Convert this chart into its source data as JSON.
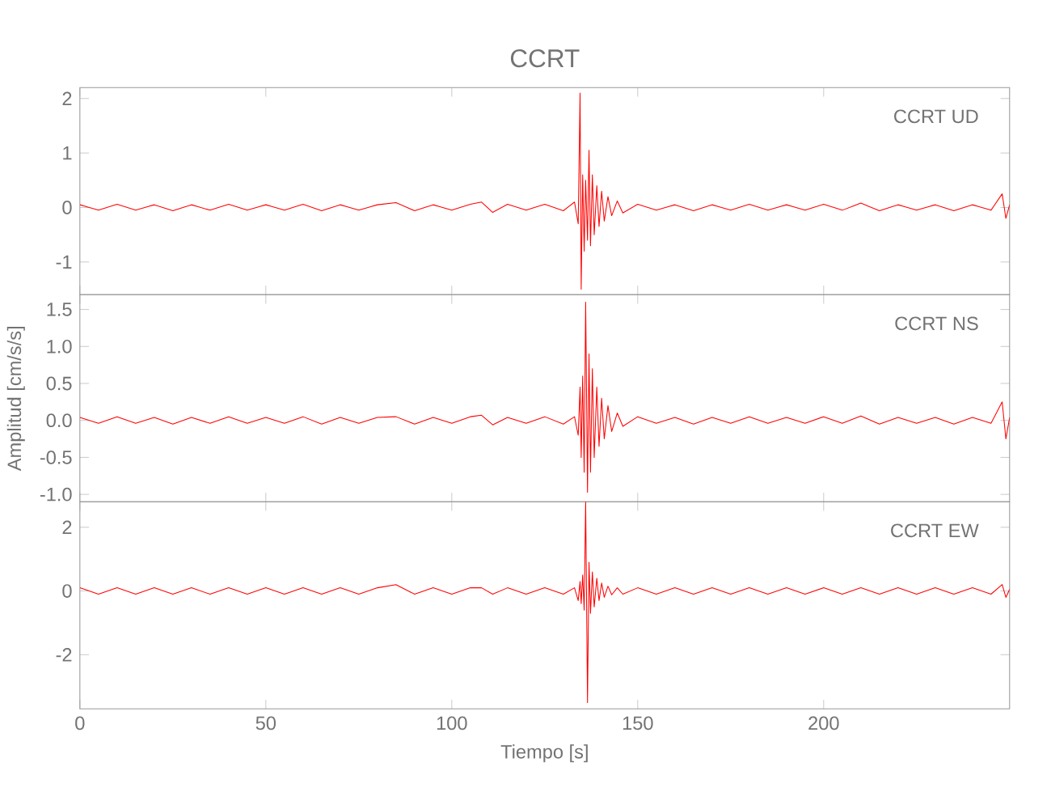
{
  "chart_data": [
    {
      "type": "line",
      "title": "CCRT",
      "annotations": [
        "CCRT   UD"
      ],
      "xlim": [
        0,
        250
      ],
      "xticks": [
        0,
        50,
        100,
        150,
        200
      ],
      "ylim": [
        -1.6,
        2.2
      ],
      "yticks": [
        -1,
        0,
        1,
        2
      ],
      "tick_labels": "y",
      "x": [
        0,
        5,
        10,
        15,
        20,
        25,
        30,
        35,
        40,
        45,
        50,
        55,
        60,
        65,
        70,
        75,
        80,
        85,
        90,
        95,
        100,
        105,
        108,
        111,
        115,
        120,
        125,
        130,
        133,
        134,
        134.5,
        134.8,
        135.2,
        135.6,
        136,
        136.5,
        136.9,
        137.3,
        137.8,
        138.3,
        139,
        139.6,
        140.3,
        141,
        142,
        143,
        144.5,
        146,
        150,
        155,
        160,
        165,
        170,
        175,
        180,
        185,
        190,
        195,
        200,
        205,
        210,
        215,
        220,
        225,
        230,
        235,
        240,
        245,
        248,
        249,
        250
      ],
      "series": [
        {
          "color": "#ff0000",
          "values": [
            0.05,
            -0.05,
            0.06,
            -0.05,
            0.05,
            -0.06,
            0.05,
            -0.05,
            0.06,
            -0.05,
            0.05,
            -0.05,
            0.06,
            -0.06,
            0.05,
            -0.05,
            0.05,
            0.09,
            -0.06,
            0.05,
            -0.05,
            0.06,
            0.1,
            -0.09,
            0.06,
            -0.05,
            0.06,
            -0.06,
            0.1,
            -0.3,
            2.1,
            -1.5,
            0.6,
            -0.8,
            0.5,
            -0.6,
            1.05,
            -0.7,
            0.6,
            -0.5,
            0.4,
            -0.35,
            0.3,
            -0.25,
            0.2,
            -0.15,
            0.12,
            -0.1,
            0.06,
            -0.05,
            0.05,
            -0.06,
            0.05,
            -0.05,
            0.06,
            -0.05,
            0.05,
            -0.05,
            0.06,
            -0.05,
            0.08,
            -0.06,
            0.05,
            -0.05,
            0.05,
            -0.06,
            0.05,
            -0.05,
            0.25,
            -0.2,
            0.05
          ]
        }
      ]
    },
    {
      "type": "line",
      "ylabel": "Amplitud [cm/s/s]",
      "annotations": [
        "CCRT   NS"
      ],
      "xlim": [
        0,
        250
      ],
      "xticks": [
        0,
        50,
        100,
        150,
        200
      ],
      "ylim": [
        -1.1,
        1.7
      ],
      "yticks": [
        {
          "value": -1,
          "label": "-1.0"
        },
        -0.5,
        {
          "value": 0,
          "label": "0.0"
        },
        0.5,
        {
          "value": 1,
          "label": "1.0"
        },
        1.5
      ],
      "tick_labels": "y",
      "x": [
        0,
        5,
        10,
        15,
        20,
        25,
        30,
        35,
        40,
        45,
        50,
        55,
        60,
        65,
        70,
        75,
        80,
        85,
        90,
        95,
        100,
        105,
        108,
        111,
        115,
        120,
        125,
        130,
        133,
        134,
        134.5,
        134.8,
        135.2,
        135.6,
        136,
        136.5,
        136.9,
        137.3,
        137.8,
        138.3,
        139,
        139.6,
        140.3,
        141,
        142,
        143,
        144.5,
        146,
        150,
        155,
        160,
        165,
        170,
        175,
        180,
        185,
        190,
        195,
        200,
        205,
        210,
        215,
        220,
        225,
        230,
        235,
        240,
        245,
        248,
        249,
        250
      ],
      "series": [
        {
          "color": "#ff0000",
          "values": [
            0.04,
            -0.04,
            0.05,
            -0.04,
            0.04,
            -0.05,
            0.04,
            -0.04,
            0.05,
            -0.04,
            0.04,
            -0.04,
            0.05,
            -0.05,
            0.04,
            -0.04,
            0.04,
            0.05,
            -0.05,
            0.04,
            -0.04,
            0.05,
            0.07,
            -0.06,
            0.04,
            -0.04,
            0.05,
            -0.05,
            0.05,
            -0.2,
            0.45,
            -0.5,
            0.6,
            -0.7,
            1.6,
            -0.97,
            0.9,
            -0.7,
            0.7,
            -0.5,
            0.45,
            -0.35,
            0.3,
            -0.25,
            0.2,
            -0.15,
            0.1,
            -0.08,
            0.05,
            -0.04,
            0.04,
            -0.05,
            0.04,
            -0.04,
            0.05,
            -0.04,
            0.04,
            -0.04,
            0.05,
            -0.04,
            0.06,
            -0.05,
            0.04,
            -0.04,
            0.04,
            -0.05,
            0.04,
            -0.04,
            0.25,
            -0.25,
            0.04
          ]
        }
      ]
    },
    {
      "type": "line",
      "xlabel": "Tiempo [s]",
      "annotations": [
        "CCRT   EW"
      ],
      "xlim": [
        0,
        250
      ],
      "xticks": [
        0,
        50,
        100,
        150,
        200
      ],
      "ylim": [
        -3.7,
        2.8
      ],
      "yticks": [
        -2,
        0,
        2
      ],
      "x": [
        0,
        5,
        10,
        15,
        20,
        25,
        30,
        35,
        40,
        45,
        50,
        55,
        60,
        65,
        70,
        75,
        80,
        85,
        90,
        95,
        100,
        105,
        108,
        111,
        115,
        120,
        125,
        130,
        133,
        134,
        134.5,
        134.8,
        135.2,
        135.6,
        136,
        136.5,
        136.9,
        137.3,
        137.8,
        138.3,
        139,
        139.6,
        140.3,
        141,
        142,
        143,
        144.5,
        146,
        150,
        155,
        160,
        165,
        170,
        175,
        180,
        185,
        190,
        195,
        200,
        205,
        210,
        215,
        220,
        225,
        230,
        235,
        240,
        245,
        248,
        249,
        250
      ],
      "series": [
        {
          "color": "#ff0000",
          "values": [
            0.1,
            -0.1,
            0.1,
            -0.1,
            0.1,
            -0.1,
            0.1,
            -0.1,
            0.1,
            -0.1,
            0.1,
            -0.1,
            0.1,
            -0.1,
            0.1,
            -0.1,
            0.1,
            0.2,
            -0.1,
            0.1,
            -0.1,
            0.1,
            0.1,
            -0.1,
            0.1,
            -0.1,
            0.1,
            -0.1,
            0.1,
            -0.3,
            0.3,
            -0.4,
            0.5,
            -0.6,
            2.8,
            -3.5,
            0.9,
            -0.7,
            0.6,
            -0.5,
            0.4,
            -0.3,
            0.25,
            -0.2,
            0.15,
            -0.12,
            0.1,
            -0.1,
            0.1,
            -0.1,
            0.1,
            -0.1,
            0.1,
            -0.1,
            0.1,
            -0.1,
            0.1,
            -0.1,
            0.1,
            -0.1,
            0.1,
            -0.1,
            0.1,
            -0.1,
            0.1,
            -0.1,
            0.1,
            -0.1,
            0.2,
            -0.2,
            0.05
          ]
        }
      ]
    }
  ]
}
